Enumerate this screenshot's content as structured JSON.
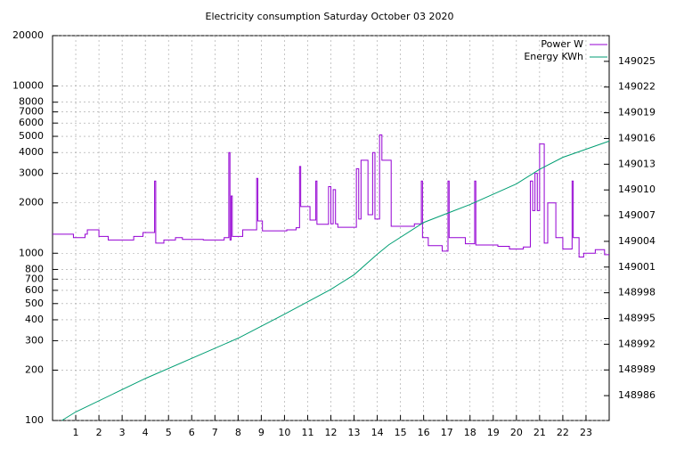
{
  "chart_data": {
    "type": "line",
    "title": "Electricity consumption Saturday October 03 2020",
    "xlim": [
      0,
      24
    ],
    "xticks": [
      1,
      2,
      3,
      4,
      5,
      6,
      7,
      8,
      9,
      10,
      11,
      12,
      13,
      14,
      15,
      16,
      17,
      18,
      19,
      20,
      21,
      22,
      23
    ],
    "ylim": [
      100,
      20000
    ],
    "yticks": [
      100,
      200,
      300,
      400,
      500,
      600,
      700,
      800,
      1000,
      2000,
      3000,
      4000,
      5000,
      6000,
      7000,
      8000,
      10000,
      20000
    ],
    "y_log": true,
    "y2lim": [
      148983.1,
      149028
    ],
    "y2ticks": [
      148986,
      148989,
      148992,
      148995,
      148998,
      149001,
      149004,
      149007,
      149010,
      149013,
      149016,
      149019,
      149022,
      149025
    ],
    "grid": true,
    "legend": "top-right",
    "series": [
      {
        "name": "Power W",
        "color": "#9400d3",
        "x": [
          0,
          0.9,
          1.4,
          1.5,
          2.0,
          2.4,
          3.5,
          3.9,
          4.4,
          4.45,
          4.8,
          5.3,
          5.6,
          6.5,
          7.4,
          7.6,
          7.65,
          7.7,
          7.75,
          8.2,
          8.8,
          8.85,
          9.05,
          10.1,
          10.5,
          10.65,
          10.7,
          11.1,
          11.35,
          11.4,
          11.9,
          12.0,
          12.1,
          12.2,
          12.3,
          13.1,
          13.2,
          13.3,
          13.6,
          13.8,
          13.9,
          14.1,
          14.2,
          14.6,
          15.6,
          15.9,
          15.95,
          16.2,
          16.8,
          17.05,
          17.1,
          17.8,
          18.2,
          18.25,
          19.2,
          19.7,
          20.3,
          20.6,
          20.7,
          20.8,
          20.9,
          21.0,
          21.2,
          21.35,
          21.7,
          22.0,
          22.4,
          22.45,
          22.7,
          22.9,
          23.4,
          23.8,
          24
        ],
        "values": [
          1300,
          1240,
          1300,
          1380,
          1260,
          1200,
          1260,
          1330,
          2700,
          1150,
          1200,
          1240,
          1210,
          1200,
          1240,
          4000,
          1200,
          2200,
          1260,
          1380,
          2800,
          1560,
          1360,
          1380,
          1420,
          3300,
          1900,
          1580,
          2700,
          1490,
          2500,
          1500,
          2400,
          1500,
          1430,
          3200,
          1600,
          3600,
          1700,
          4000,
          1600,
          5100,
          3600,
          1450,
          1500,
          2700,
          1240,
          1110,
          1030,
          2700,
          1240,
          1140,
          2700,
          1120,
          1100,
          1060,
          1090,
          2700,
          1800,
          3000,
          1800,
          4500,
          1150,
          2000,
          1240,
          1060,
          2700,
          1240,
          950,
          1000,
          1050,
          980,
          980
        ]
      },
      {
        "name": "Energy KWh",
        "color": "#009e73",
        "axis": "y2",
        "x": [
          0.4,
          1,
          4,
          8,
          10,
          12,
          13,
          14,
          14.5,
          16,
          18,
          20,
          21,
          22,
          24
        ],
        "values": [
          148983.1,
          148984.1,
          148988,
          148992.7,
          148995.5,
          148998.4,
          149000.1,
          149002.5,
          149003.6,
          149006.2,
          149008.3,
          149010.7,
          149012.4,
          149013.8,
          149015.7
        ]
      }
    ]
  }
}
